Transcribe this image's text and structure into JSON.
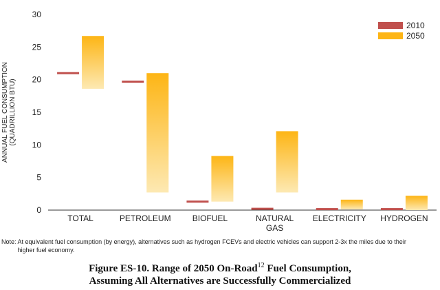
{
  "chart_data": {
    "type": "bar",
    "subtype": "floating-range",
    "ylabel": "ANNUAL FUEL CONSUMPTION (QUADRILLION BTU)",
    "ylabel_lines": [
      "ANNUAL FUEL CONSUMPTION",
      "(QUADRILLION BTU)"
    ],
    "ylim": [
      0,
      30
    ],
    "yticks": [
      0,
      5,
      10,
      15,
      20,
      25,
      30
    ],
    "grid": false,
    "legend_position": "top-right",
    "categories": [
      "TOTAL",
      "PETROLEUM",
      "BIOFUEL",
      "NATURAL GAS",
      "ELECTRICITY",
      "HYDROGEN"
    ],
    "category_lines": [
      [
        "TOTAL"
      ],
      [
        "PETROLEUM"
      ],
      [
        "BIOFUEL"
      ],
      [
        "NATURAL",
        "GAS"
      ],
      [
        "ELECTRICITY"
      ],
      [
        "HYDROGEN"
      ]
    ],
    "series": [
      {
        "name": "2010",
        "color": "#c0504d",
        "values": [
          21.0,
          19.7,
          1.3,
          0.2,
          0.15,
          0.15
        ]
      },
      {
        "name": "2050",
        "color": "#fdb515",
        "ranges": [
          [
            18.6,
            26.7
          ],
          [
            2.7,
            21.0
          ],
          [
            1.3,
            8.3
          ],
          [
            2.7,
            12.1
          ],
          [
            0.1,
            1.6
          ],
          [
            0.0,
            2.2
          ]
        ]
      }
    ]
  },
  "note": {
    "label": "Note:",
    "text": "At equivalent fuel consumption (by energy), alternatives such as hydrogen FCEVs and electric vehicles can support 2-3x the miles due to their higher fuel economy."
  },
  "caption": {
    "line1_before": "Figure ES-10.  Range of 2050 On-Road",
    "superscript": "12",
    "line1_after": " Fuel Consumption,",
    "line2": "Assuming All Alternatives are Successfully Commercialized"
  }
}
